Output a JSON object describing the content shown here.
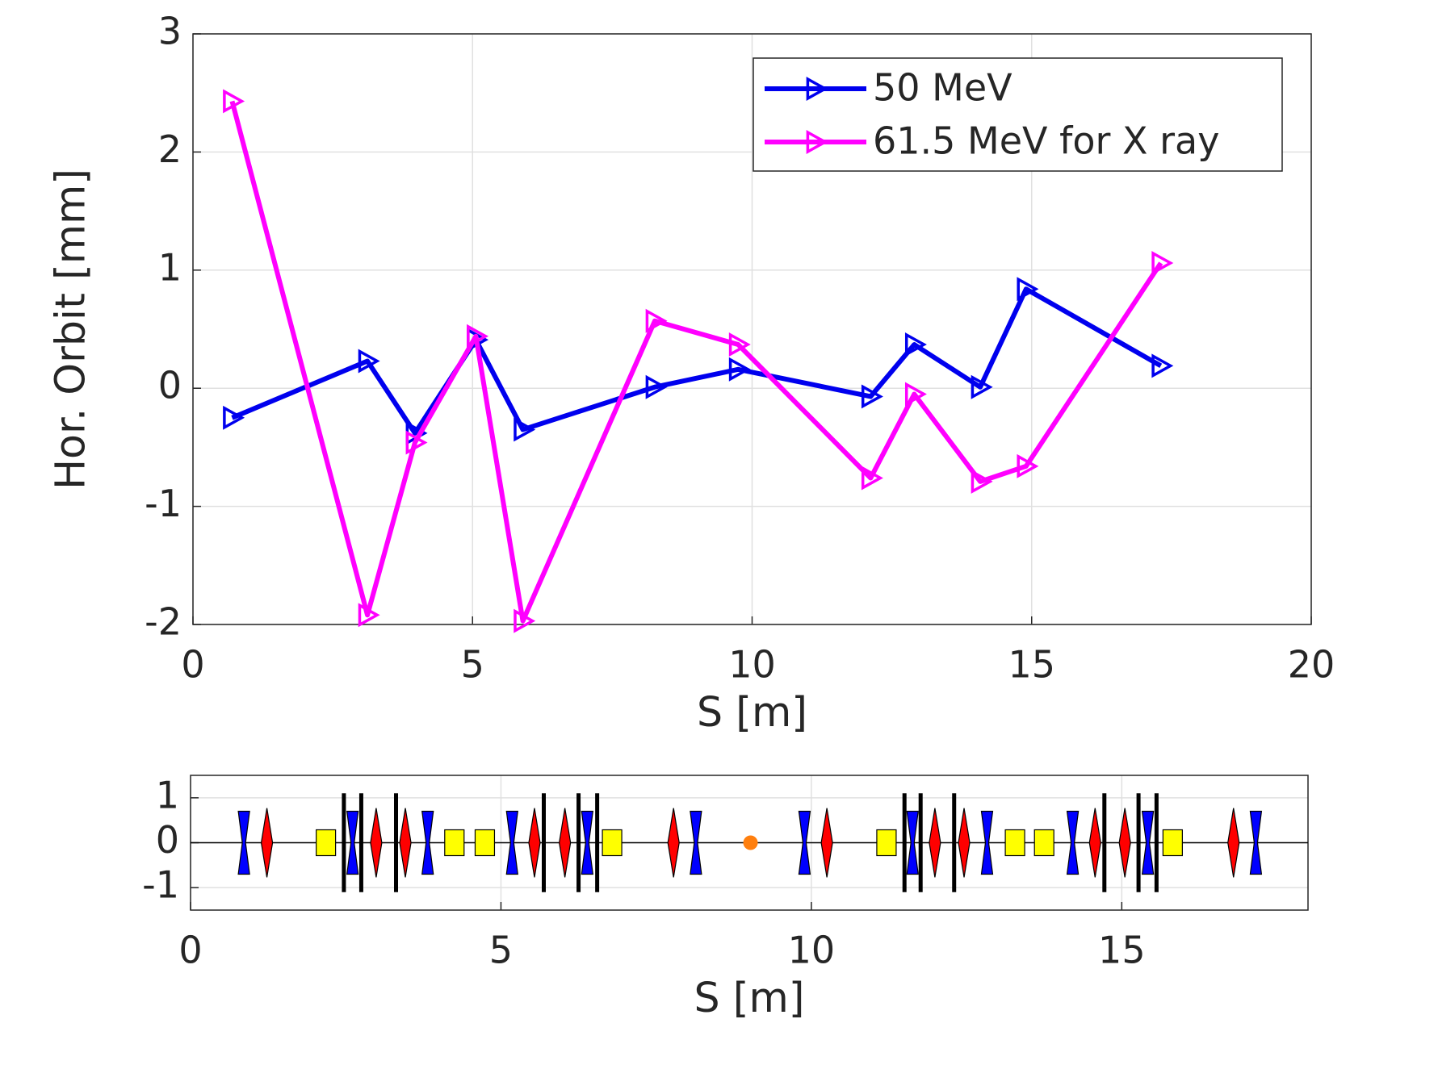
{
  "chart_data": [
    {
      "type": "line",
      "xlabel": "S [m]",
      "ylabel": "Hor. Orbit [mm]",
      "x": [
        0.7,
        3.12,
        3.97,
        5.06,
        5.9,
        8.26,
        9.75,
        12.12,
        12.9,
        14.08,
        14.9,
        17.31
      ],
      "series": [
        {
          "name": "50 MeV",
          "color": "#0000ee",
          "values": [
            -0.25,
            0.23,
            -0.38,
            0.41,
            -0.35,
            0.01,
            0.16,
            -0.07,
            0.37,
            0.01,
            0.84,
            0.19
          ]
        },
        {
          "name": "61.5 MeV for X ray",
          "color": "#ff00ff",
          "values": [
            2.43,
            -1.92,
            -0.46,
            0.44,
            -1.97,
            0.57,
            0.37,
            -0.76,
            -0.05,
            -0.79,
            -0.66,
            1.06
          ]
        }
      ],
      "xlim": [
        0,
        20
      ],
      "xticks": [
        0,
        5,
        10,
        15,
        20
      ],
      "ylim": [
        -2,
        3
      ],
      "yticks": [
        -2,
        -1,
        0,
        1,
        2,
        3
      ],
      "grid": true,
      "legend": "upper right"
    },
    {
      "type": "lattice",
      "xlabel": "S [m]",
      "xlim": [
        0,
        18
      ],
      "xticks": [
        0,
        5,
        10,
        15
      ],
      "ylim": [
        -1.5,
        1.5
      ],
      "yticks": [
        -1,
        0,
        1
      ],
      "grid": true,
      "elements": [
        {
          "shape": "hourglass",
          "color": "#0000ff",
          "positions": [
            0.86,
            2.61,
            3.82,
            5.18,
            6.39,
            8.14,
            9.89,
            11.63,
            12.83,
            14.21,
            15.42,
            17.16
          ]
        },
        {
          "shape": "diamond",
          "color": "#ff0000",
          "positions": [
            1.23,
            2.99,
            3.46,
            5.54,
            6.03,
            7.78,
            10.25,
            11.99,
            12.46,
            14.57,
            15.05,
            16.8
          ]
        },
        {
          "shape": "square",
          "color": "#ffff00",
          "positions": [
            2.18,
            4.25,
            4.74,
            6.79,
            11.21,
            13.28,
            13.75,
            15.82
          ]
        },
        {
          "shape": "line",
          "color": "#000000",
          "positions": [
            2.47,
            2.75,
            3.31,
            5.69,
            6.25,
            6.55,
            11.5,
            11.76,
            12.3,
            14.72,
            15.27,
            15.56
          ]
        },
        {
          "shape": "dot",
          "color": "#ff7f0e",
          "positions": [
            9.02
          ]
        }
      ]
    }
  ]
}
